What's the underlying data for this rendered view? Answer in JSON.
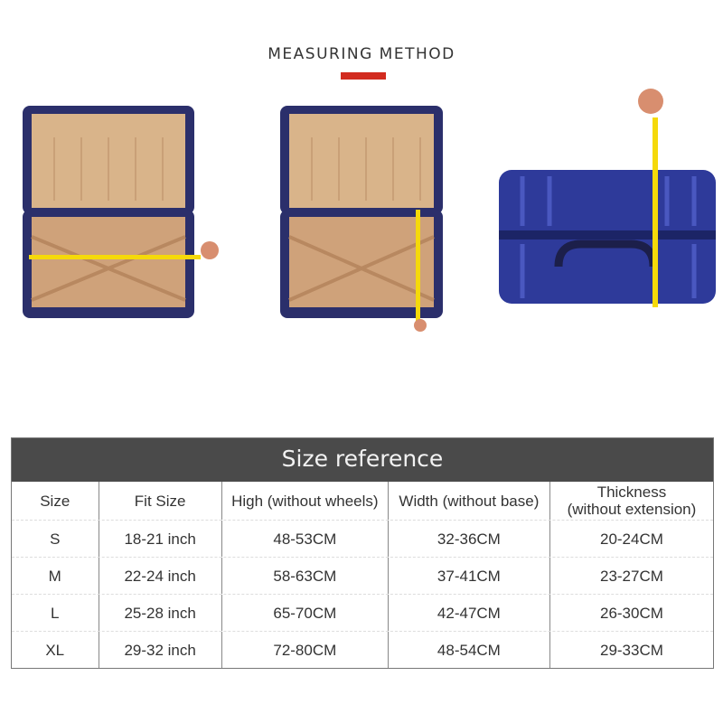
{
  "heading": {
    "title": "MEASURING METHOD",
    "accent_color": "#d22b1f"
  },
  "photos": [
    {
      "name": "open-suitcase-width-measurement",
      "icon": "suitcase-open-icon"
    },
    {
      "name": "open-suitcase-height-measurement",
      "icon": "suitcase-open-icon"
    },
    {
      "name": "closed-suitcase-thickness-measurement",
      "icon": "suitcase-closed-icon"
    }
  ],
  "size_table": {
    "title": "Size reference",
    "header_color": "#4a4a4a",
    "columns": [
      "Size",
      "Fit Size",
      "High (without wheels)",
      "Width (without base)",
      "Thickness\n(without extension)"
    ],
    "rows": [
      [
        "S",
        "18-21 inch",
        "48-53CM",
        "32-36CM",
        "20-24CM"
      ],
      [
        "M",
        "22-24 inch",
        "58-63CM",
        "37-41CM",
        "23-27CM"
      ],
      [
        "L",
        "25-28 inch",
        "65-70CM",
        "42-47CM",
        "26-30CM"
      ],
      [
        "XL",
        "29-32 inch",
        "72-80CM",
        "48-54CM",
        "29-33CM"
      ]
    ]
  }
}
